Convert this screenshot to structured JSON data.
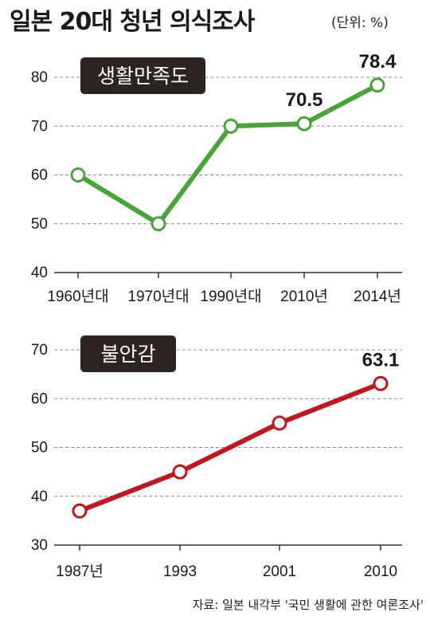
{
  "title": "일본 20대 청년 의식조사",
  "unit": "(단위: %)",
  "source": "자료: 일본 내각부 '국민 생활에 관한 여론조사'",
  "colors": {
    "satisfaction": "#4aa33a",
    "anxiety": "#c0161e",
    "label_box": "#2b2420"
  },
  "chart_data": [
    {
      "type": "line",
      "label": "생활만족도",
      "categories": [
        "1960년대",
        "1970년대",
        "1990년대",
        "2010년",
        "2014년"
      ],
      "values": [
        60,
        50,
        70,
        70.5,
        78.4
      ],
      "value_labels": [
        "",
        "",
        "",
        "70.5",
        "78.4"
      ],
      "ylim": [
        40,
        80
      ],
      "yticks": [
        40,
        50,
        60,
        70,
        80
      ],
      "grid": true
    },
    {
      "type": "line",
      "label": "불안감",
      "categories": [
        "1987년",
        "1993",
        "2001",
        "2010"
      ],
      "values": [
        37,
        45,
        55,
        63.1
      ],
      "value_labels": [
        "",
        "",
        "",
        "63.1"
      ],
      "ylim": [
        30,
        70
      ],
      "yticks": [
        30,
        40,
        50,
        60,
        70
      ],
      "grid": true
    }
  ]
}
